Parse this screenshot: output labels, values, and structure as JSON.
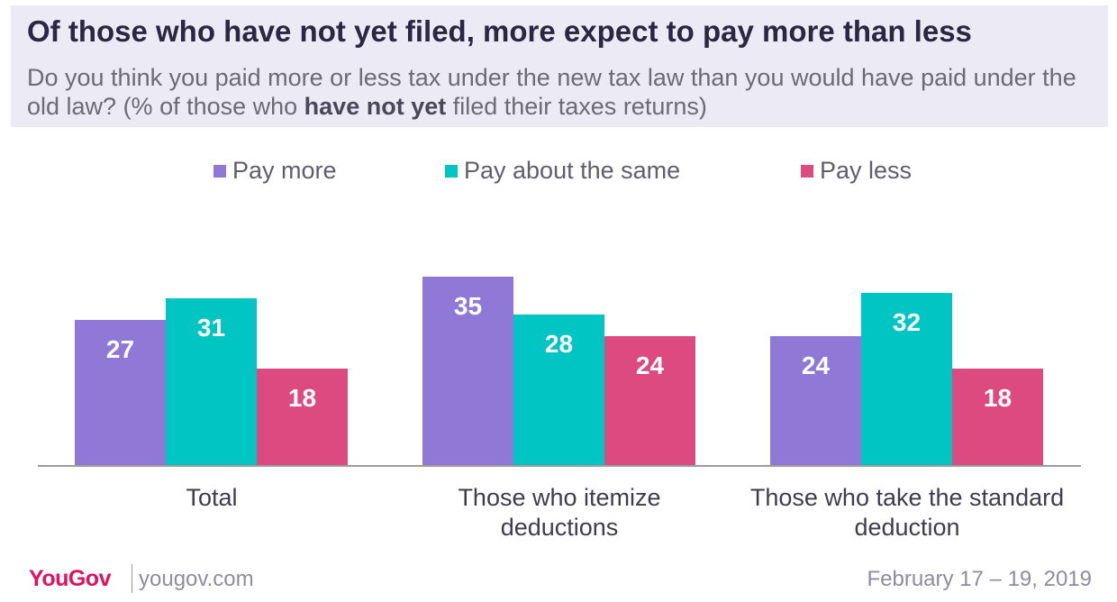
{
  "title": "Of those who have not yet filed, more expect to pay more than less",
  "subtitle": {
    "part1": "Do you think you paid more or less tax under the new tax law than you would have paid under the old law? (% of those who ",
    "bold": "have not yet",
    "part2": " filed their taxes returns)"
  },
  "colors": {
    "pay_more": "#9079D6",
    "pay_same": "#00C5C2",
    "pay_less": "#DD4A7F",
    "axis": "#9C9C9C",
    "bar_label": "#FFFFFF",
    "category_label": "#3E3D4A"
  },
  "chart_data": {
    "type": "bar",
    "title": "Of those who have not yet filed, more expect to pay more than less",
    "categories": [
      "Total",
      "Those who itemize deductions",
      "Those who take the standard deduction"
    ],
    "category_lines": [
      [
        "Total"
      ],
      [
        "Those who itemize",
        "deductions"
      ],
      [
        "Those who take the standard",
        "deduction"
      ]
    ],
    "series": [
      {
        "name": "Pay more",
        "values": [
          27,
          35,
          24
        ]
      },
      {
        "name": "Pay about the same",
        "values": [
          31,
          28,
          32
        ]
      },
      {
        "name": "Pay less",
        "values": [
          18,
          24,
          18
        ]
      }
    ],
    "ylim": [
      0,
      40
    ],
    "xlabel": "",
    "ylabel": "",
    "grid": false,
    "legend": "top-center",
    "data_labels": true
  },
  "footer": {
    "brand": "YouGov",
    "site": "yougov.com",
    "date": "February 17 – 19, 2019"
  }
}
